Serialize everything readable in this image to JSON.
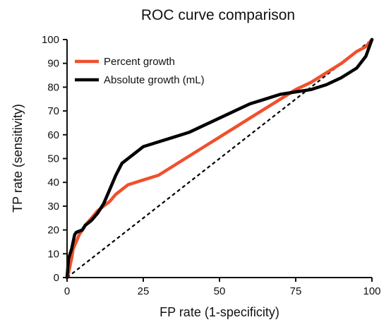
{
  "chart_data": {
    "type": "line",
    "title": "ROC curve comparison",
    "xlabel": "FP rate (1-specificity)",
    "ylabel": "TP rate (sensitivity)",
    "xlim": [
      0,
      100
    ],
    "ylim": [
      0,
      100
    ],
    "x_ticks": [
      0,
      25,
      50,
      75,
      100
    ],
    "y_ticks": [
      0,
      10,
      20,
      30,
      40,
      50,
      60,
      70,
      80,
      90,
      100
    ],
    "grid": false,
    "legend": "top-left",
    "reference_line": {
      "style": "dashed",
      "color": "#000000",
      "points": [
        [
          0,
          0
        ],
        [
          100,
          100
        ]
      ]
    },
    "series": [
      {
        "name": "Percent growth",
        "color": "#f0502d",
        "points": [
          [
            0,
            0
          ],
          [
            0.5,
            2
          ],
          [
            1,
            5
          ],
          [
            1.5,
            8
          ],
          [
            2,
            12
          ],
          [
            3,
            15
          ],
          [
            4,
            18
          ],
          [
            5,
            20
          ],
          [
            6,
            22
          ],
          [
            8,
            25
          ],
          [
            10,
            28
          ],
          [
            12,
            30
          ],
          [
            14,
            32
          ],
          [
            16,
            35
          ],
          [
            18,
            37
          ],
          [
            20,
            39
          ],
          [
            25,
            41
          ],
          [
            30,
            43
          ],
          [
            35,
            47
          ],
          [
            40,
            51
          ],
          [
            45,
            55
          ],
          [
            50,
            59
          ],
          [
            55,
            63
          ],
          [
            60,
            67
          ],
          [
            65,
            71
          ],
          [
            70,
            75
          ],
          [
            75,
            79
          ],
          [
            80,
            82
          ],
          [
            85,
            86
          ],
          [
            90,
            90
          ],
          [
            95,
            95
          ],
          [
            98,
            97
          ],
          [
            100,
            100
          ]
        ]
      },
      {
        "name": "Absolute growth (mL)",
        "color": "#000000",
        "points": [
          [
            0,
            0
          ],
          [
            0.3,
            5
          ],
          [
            0.5,
            8
          ],
          [
            1,
            10
          ],
          [
            1.5,
            12
          ],
          [
            2,
            15
          ],
          [
            2.5,
            18
          ],
          [
            3,
            19
          ],
          [
            5,
            20
          ],
          [
            6,
            22
          ],
          [
            8,
            24
          ],
          [
            10,
            27
          ],
          [
            12,
            31
          ],
          [
            14,
            37
          ],
          [
            16,
            43
          ],
          [
            18,
            48
          ],
          [
            20,
            50
          ],
          [
            22,
            52
          ],
          [
            25,
            55
          ],
          [
            30,
            57
          ],
          [
            35,
            59
          ],
          [
            40,
            61
          ],
          [
            45,
            64
          ],
          [
            50,
            67
          ],
          [
            55,
            70
          ],
          [
            60,
            73
          ],
          [
            65,
            75
          ],
          [
            70,
            77
          ],
          [
            75,
            78
          ],
          [
            80,
            79
          ],
          [
            85,
            81
          ],
          [
            90,
            84
          ],
          [
            95,
            88
          ],
          [
            98,
            93
          ],
          [
            100,
            100
          ]
        ]
      }
    ]
  }
}
